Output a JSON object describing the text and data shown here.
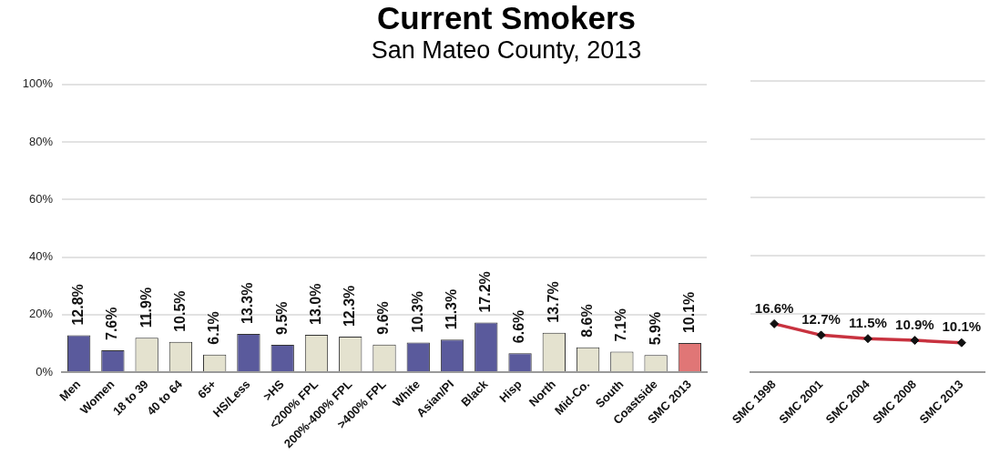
{
  "chart_data": [
    {
      "type": "bar",
      "title": "Current Smokers",
      "subtitle": "San Mateo County, 2013",
      "categories": [
        "Men",
        "Women",
        "18 to 39",
        "40 to 64",
        "65+",
        "HS/Less",
        ">HS",
        "<200% FPL",
        "200%-400% FPL",
        ">400% FPL",
        "White",
        "Asian/PI",
        "Black",
        "Hisp",
        "North",
        "Mid-Co.",
        "South",
        "Coastside",
        "SMC 2013"
      ],
      "values": [
        12.8,
        7.6,
        11.9,
        10.5,
        6.1,
        13.3,
        9.5,
        13.0,
        12.3,
        9.6,
        10.3,
        11.3,
        17.2,
        6.6,
        13.7,
        8.6,
        7.1,
        5.9,
        10.1
      ],
      "value_labels": [
        "12.8%",
        "7.6%",
        "11.9%",
        "10.5%",
        "6.1%",
        "13.3%",
        "9.5%",
        "13.0%",
        "12.3%",
        "9.6%",
        "10.3%",
        "11.3%",
        "17.2%",
        "6.6%",
        "13.7%",
        "8.6%",
        "7.1%",
        "5.9%",
        "10.1%"
      ],
      "colors": [
        "#5a5a9c",
        "#5a5a9c",
        "#e4e2cf",
        "#e4e2cf",
        "#e4e2cf",
        "#5a5a9c",
        "#5a5a9c",
        "#e4e2cf",
        "#e4e2cf",
        "#e4e2cf",
        "#5a5a9c",
        "#5a5a9c",
        "#5a5a9c",
        "#5a5a9c",
        "#e4e2cf",
        "#e4e2cf",
        "#e4e2cf",
        "#e4e2cf",
        "#e07676"
      ],
      "ylim": [
        0,
        100
      ],
      "yticks": [
        {
          "value": 0,
          "label": "0%"
        },
        {
          "value": 20,
          "label": "20%"
        },
        {
          "value": 40,
          "label": "40%"
        },
        {
          "value": 60,
          "label": "60%"
        },
        {
          "value": 80,
          "label": "80%"
        },
        {
          "value": 100,
          "label": "100%"
        }
      ],
      "grid": "y"
    },
    {
      "type": "line",
      "categories": [
        "SMC 1998",
        "SMC 2001",
        "SMC 2004",
        "SMC 2008",
        "SMC 2013"
      ],
      "values": [
        16.6,
        12.7,
        11.5,
        10.9,
        10.1
      ],
      "value_labels": [
        "16.6%",
        "12.7%",
        "11.5%",
        "10.9%",
        "10.1%"
      ],
      "color": "#c8323f",
      "marker": "diamond",
      "line_style": "solid",
      "ylim": [
        0,
        100
      ],
      "yticks": [
        0,
        20,
        40,
        60,
        80,
        100
      ],
      "grid": "y",
      "tick_labels": "x"
    }
  ]
}
